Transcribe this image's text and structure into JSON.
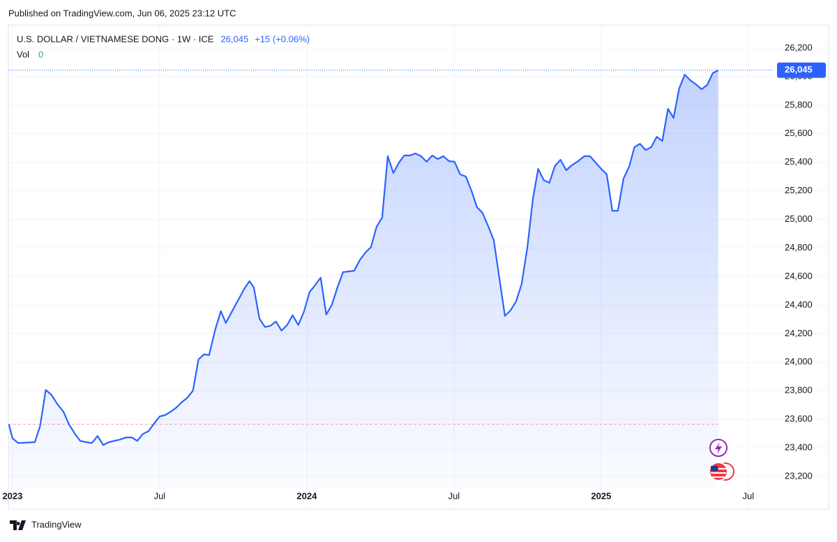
{
  "header": {
    "published": "Published on TradingView.com, Jun 06, 2025 23:12 UTC"
  },
  "footer": {
    "brand": "TradingView"
  },
  "chart_data": {
    "type": "area",
    "change": "+15 (+0.06%)",
    "volume_label": "Vol",
    "volume": 0,
    "last": {
      "value": 26045,
      "label": "26,045"
    },
    "x": [
      2022.988,
      2023.0,
      2023.019,
      2023.076,
      2023.094,
      2023.113,
      2023.132,
      2023.154,
      2023.173,
      2023.192,
      2023.211,
      2023.23,
      2023.251,
      2023.27,
      2023.289,
      2023.308,
      2023.327,
      2023.346,
      2023.365,
      2023.386,
      2023.405,
      2023.424,
      2023.443,
      2023.462,
      2023.481,
      2023.5,
      2023.519,
      2023.538,
      2023.557,
      2023.576,
      2023.594,
      2023.613,
      2023.632,
      2023.651,
      2023.668,
      2023.689,
      2023.708,
      2023.725,
      2023.749,
      2023.767,
      2023.786,
      2023.805,
      2023.82,
      2023.839,
      2023.858,
      2023.876,
      2023.895,
      2023.914,
      2023.933,
      2023.952,
      2023.971,
      2023.99,
      2024.009,
      2024.028,
      2024.047,
      2024.066,
      2024.085,
      2024.104,
      2024.123,
      2024.142,
      2024.161,
      2024.18,
      2024.199,
      2024.218,
      2024.237,
      2024.256,
      2024.275,
      2024.294,
      2024.313,
      2024.331,
      2024.35,
      2024.369,
      2024.388,
      2024.407,
      2024.426,
      2024.445,
      2024.464,
      2024.483,
      2024.502,
      2024.521,
      2024.54,
      2024.559,
      2024.578,
      2024.597,
      2024.616,
      2024.635,
      2024.673,
      2024.692,
      2024.711,
      2024.73,
      2024.749,
      2024.768,
      2024.786,
      2024.805,
      2024.824,
      2024.843,
      2024.862,
      2024.881,
      2024.9,
      2024.919,
      2024.943,
      2024.962,
      2024.981,
      2025.0,
      2025.019,
      2025.038,
      2025.057,
      2025.076,
      2025.095,
      2025.113,
      2025.132,
      2025.151,
      2025.17,
      2025.189,
      2025.208,
      2025.227,
      2025.246,
      2025.265,
      2025.284,
      2025.303,
      2025.322,
      2025.341,
      2025.36,
      2025.379,
      2025.398
    ],
    "series": [
      {
        "name": "U.S. DOLLAR / VIETNAMESE DONG · 1W · ICE",
        "color": "#2962ff",
        "values": [
          23565,
          23468,
          23434,
          23440,
          23555,
          23806,
          23772,
          23702,
          23654,
          23565,
          23502,
          23449,
          23440,
          23434,
          23483,
          23420,
          23440,
          23449,
          23458,
          23473,
          23473,
          23449,
          23497,
          23517,
          23570,
          23620,
          23630,
          23654,
          23683,
          23722,
          23751,
          23800,
          24020,
          24055,
          24050,
          24231,
          24358,
          24275,
          24368,
          24436,
          24509,
          24568,
          24524,
          24304,
          24246,
          24255,
          24285,
          24221,
          24260,
          24329,
          24260,
          24353,
          24490,
          24539,
          24592,
          24334,
          24402,
          24524,
          24631,
          24636,
          24641,
          24715,
          24768,
          24807,
          24949,
          25012,
          25443,
          25325,
          25399,
          25448,
          25448,
          25462,
          25443,
          25404,
          25448,
          25423,
          25443,
          25409,
          25404,
          25316,
          25301,
          25203,
          25086,
          25046,
          24954,
          24856,
          24324,
          24363,
          24426,
          24548,
          24802,
          25144,
          25354,
          25276,
          25257,
          25374,
          25418,
          25345,
          25379,
          25404,
          25443,
          25443,
          25399,
          25354,
          25316,
          25061,
          25061,
          25286,
          25369,
          25506,
          25530,
          25486,
          25506,
          25579,
          25550,
          25775,
          25711,
          25917,
          26014,
          25975,
          25946,
          25912,
          25941,
          26024,
          26045
        ]
      }
    ],
    "xlim": [
      2022.986,
      2025.588
    ],
    "xticks": [
      {
        "value": 2023,
        "label": "2023"
      },
      {
        "value": 2023.5,
        "label": "Jul"
      },
      {
        "value": 2024,
        "label": "2024"
      },
      {
        "value": 2024.5,
        "label": "Jul"
      },
      {
        "value": 2025,
        "label": "2025"
      },
      {
        "value": 2025.5,
        "label": "Jul"
      }
    ],
    "ylim": [
      23117,
      26361
    ],
    "yticks": [
      {
        "value": 23200,
        "label": "23,200"
      },
      {
        "value": 23400,
        "label": "23,400"
      },
      {
        "value": 23600,
        "label": "23,600"
      },
      {
        "value": 23800,
        "label": "23,800"
      },
      {
        "value": 24000,
        "label": "24,000"
      },
      {
        "value": 24200,
        "label": "24,200"
      },
      {
        "value": 24400,
        "label": "24,400"
      },
      {
        "value": 24600,
        "label": "24,600"
      },
      {
        "value": 24800,
        "label": "24,800"
      },
      {
        "value": 25000,
        "label": "25,000"
      },
      {
        "value": 25200,
        "label": "25,200"
      },
      {
        "value": 25400,
        "label": "25,400"
      },
      {
        "value": 25600,
        "label": "25,600"
      },
      {
        "value": 25800,
        "label": "25,800"
      },
      {
        "value": 26000,
        "label": "26,000"
      },
      {
        "value": 26200,
        "label": "26,200"
      }
    ],
    "grid": true
  }
}
